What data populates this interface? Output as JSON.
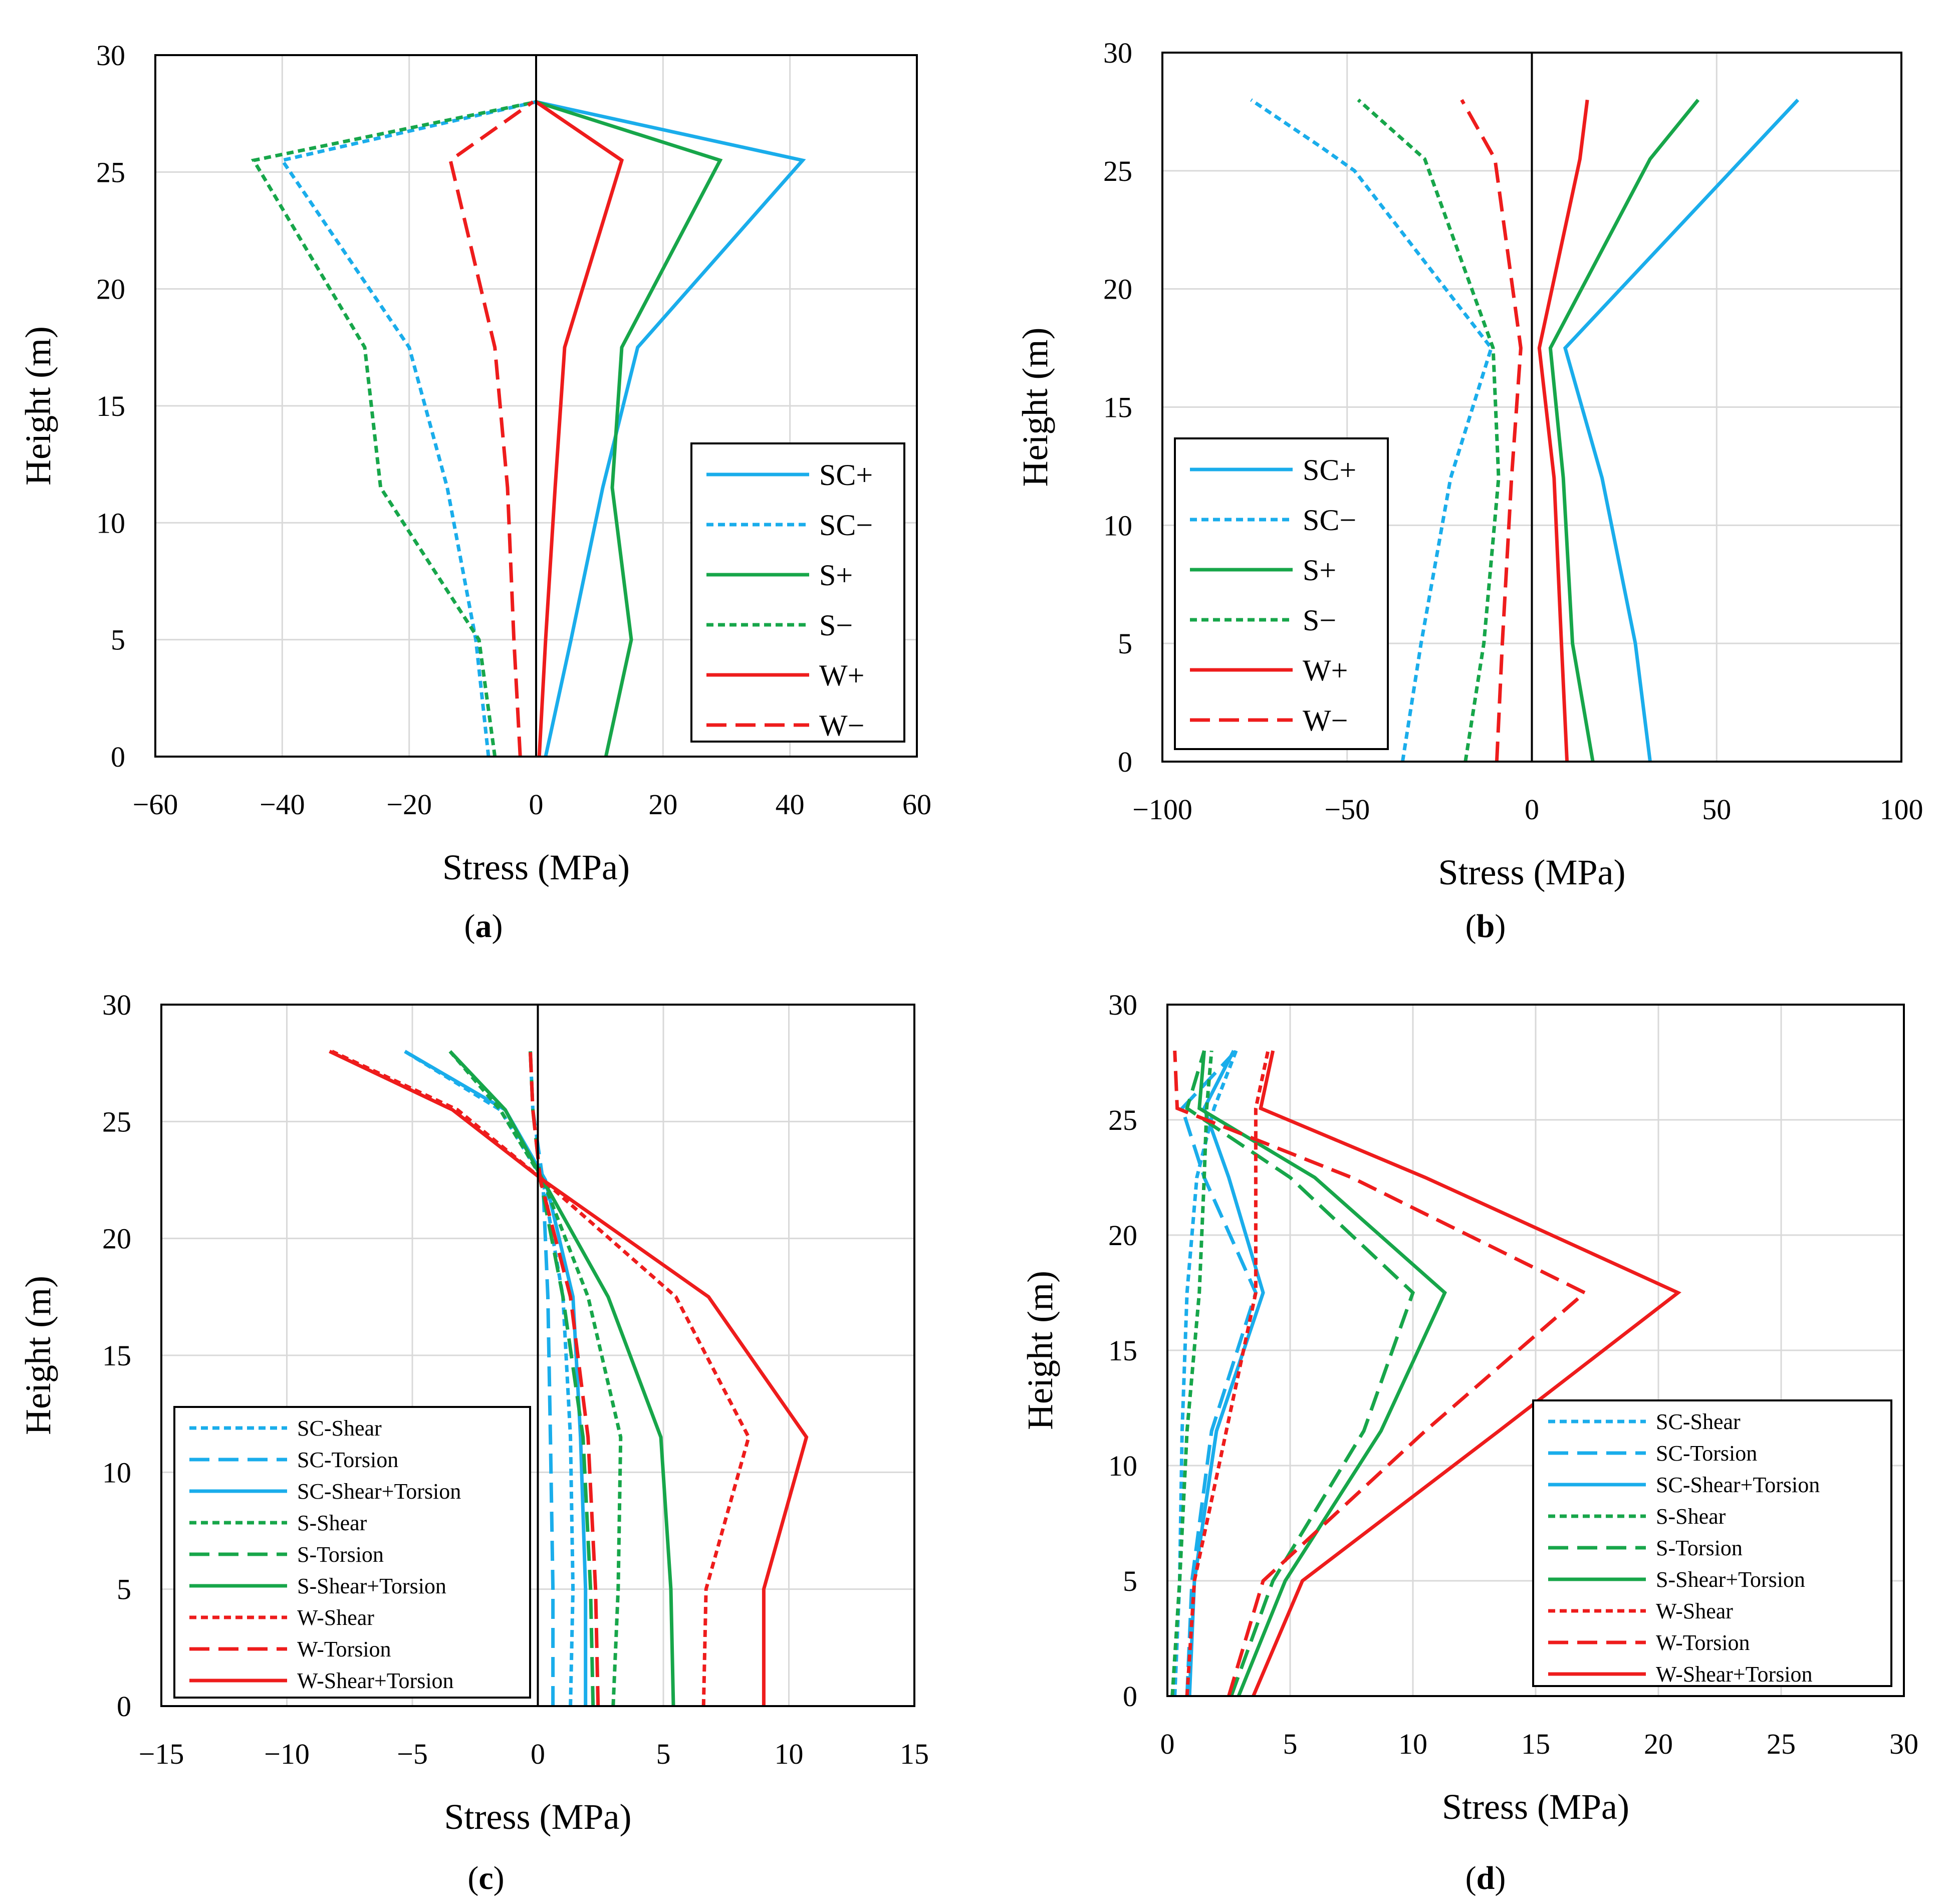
{
  "colors": {
    "SC": "#1aadeb",
    "S": "#17a64a",
    "W": "#ee1c1c",
    "grid": "#d9d9d9"
  },
  "chart_data": [
    {
      "type": "line",
      "panel": "a",
      "caption": {
        "open": "(",
        "letter": "a",
        "close": ")"
      },
      "xlabel": "Stress (MPa)",
      "ylabel": "Height (m)",
      "xlim": [
        -60,
        60
      ],
      "ylim": [
        0,
        30
      ],
      "xticks": [
        -60,
        -40,
        -20,
        0,
        20,
        40,
        60
      ],
      "xtick_labels": [
        "−60",
        "−40",
        "−20",
        "0",
        "20",
        "40",
        "60"
      ],
      "yticks": [
        0,
        5,
        10,
        15,
        20,
        25,
        30
      ],
      "ytick_labels": [
        "0",
        "5",
        "10",
        "15",
        "20",
        "25",
        "30"
      ],
      "grid": true,
      "legend_position": "right",
      "series": [
        {
          "name": "SC+",
          "color": "SC",
          "dash": "solid",
          "x": [
            1.5,
            5.5,
            10.5,
            16,
            42,
            0
          ],
          "y": [
            0,
            5,
            11.5,
            17.5,
            25.5,
            28
          ]
        },
        {
          "name": "SC−",
          "color": "SC",
          "dash": "short",
          "x": [
            -7.5,
            -9.5,
            -14,
            -20,
            -40,
            0
          ],
          "y": [
            0,
            5,
            11.5,
            17.5,
            25.5,
            28
          ]
        },
        {
          "name": "S+",
          "color": "S",
          "dash": "solid",
          "x": [
            11,
            15,
            12,
            13.5,
            29,
            0
          ],
          "y": [
            0,
            5,
            11.5,
            17.5,
            25.5,
            28
          ]
        },
        {
          "name": "S−",
          "color": "S",
          "dash": "short",
          "x": [
            -6.5,
            -9,
            -24.5,
            -27,
            -44.5,
            0
          ],
          "y": [
            0,
            5,
            11.5,
            17.5,
            25.5,
            28
          ]
        },
        {
          "name": "W+",
          "color": "W",
          "dash": "solid",
          "x": [
            0.5,
            1.5,
            3,
            4.5,
            13.5,
            0
          ],
          "y": [
            0,
            5,
            11.5,
            17.5,
            25.5,
            28
          ]
        },
        {
          "name": "W−",
          "color": "W",
          "dash": "long",
          "x": [
            -2.5,
            -3.5,
            -4.5,
            -6.5,
            -13.5,
            -0.5
          ],
          "y": [
            0,
            5,
            11.5,
            17.5,
            25.5,
            28
          ]
        }
      ]
    },
    {
      "type": "line",
      "panel": "b",
      "caption": {
        "open": "(",
        "letter": "b",
        "close": ")"
      },
      "xlabel": "Stress (MPa)",
      "ylabel": "Height (m)",
      "xlim": [
        -100,
        100
      ],
      "ylim": [
        0,
        30
      ],
      "xticks": [
        -100,
        -50,
        0,
        50,
        100
      ],
      "xtick_labels": [
        "−100",
        "−50",
        "0",
        "50",
        "100"
      ],
      "yticks": [
        0,
        5,
        10,
        15,
        20,
        25,
        30
      ],
      "ytick_labels": [
        "0",
        "5",
        "10",
        "15",
        "20",
        "25",
        "30"
      ],
      "grid": true,
      "legend_position": "left",
      "series": [
        {
          "name": "SC+",
          "color": "SC",
          "dash": "solid",
          "x": [
            32,
            28,
            19,
            9,
            72
          ],
          "y": [
            0,
            5,
            12,
            17.5,
            28
          ]
        },
        {
          "name": "SC−",
          "color": "SC",
          "dash": "short",
          "x": [
            -35,
            -30,
            -22,
            -11,
            -48,
            -57,
            -76
          ],
          "y": [
            0,
            5,
            12,
            17.5,
            25,
            26,
            28
          ]
        },
        {
          "name": "S+",
          "color": "S",
          "dash": "solid",
          "x": [
            16.5,
            11,
            8.5,
            5,
            32,
            45
          ],
          "y": [
            0,
            5,
            12,
            17.5,
            25.5,
            28
          ]
        },
        {
          "name": "S−",
          "color": "S",
          "dash": "short",
          "x": [
            -18,
            -13,
            -9,
            -10.5,
            -29,
            -47
          ],
          "y": [
            0,
            5,
            12,
            17.5,
            25.5,
            28
          ]
        },
        {
          "name": "W+",
          "color": "W",
          "dash": "solid",
          "x": [
            9.5,
            8,
            6,
            2,
            13,
            15
          ],
          "y": [
            0,
            5,
            12,
            17.5,
            25.5,
            28
          ]
        },
        {
          "name": "W−",
          "color": "W",
          "dash": "long",
          "x": [
            -9.5,
            -8,
            -5.5,
            -3,
            -10,
            -19
          ],
          "y": [
            0,
            5,
            12,
            17.5,
            25.5,
            28
          ]
        }
      ]
    },
    {
      "type": "line",
      "panel": "c",
      "caption": {
        "open": "(",
        "letter": "c",
        "close": ")"
      },
      "xlabel": "Stress (MPa)",
      "ylabel": "Height (m)",
      "xlim": [
        -15,
        15
      ],
      "ylim": [
        0,
        30
      ],
      "xticks": [
        -15,
        -10,
        -5,
        0,
        5,
        10,
        15
      ],
      "xtick_labels": [
        "−15",
        "−10",
        "−5",
        "0",
        "5",
        "10",
        "15"
      ],
      "yticks": [
        0,
        5,
        10,
        15,
        20,
        25,
        30
      ],
      "ytick_labels": [
        "0",
        "5",
        "10",
        "15",
        "20",
        "25",
        "30"
      ],
      "grid": true,
      "legend_position": "bottom-left",
      "series": [
        {
          "name": "SC-Shear",
          "color": "SC",
          "dash": "short",
          "x": [
            1.3,
            1.4,
            1.3,
            1.0,
            0.2,
            -1.5,
            -5.3
          ],
          "y": [
            0,
            5,
            11.5,
            17.5,
            22.5,
            25.5,
            28
          ]
        },
        {
          "name": "SC-Torsion",
          "color": "SC",
          "dash": "long",
          "x": [
            0.6,
            0.6,
            0.5,
            0.4,
            0.2,
            -0.2,
            -0.3
          ],
          "y": [
            0,
            5,
            11.5,
            17.5,
            22.5,
            25.5,
            28
          ]
        },
        {
          "name": "SC-Shear+Torsion",
          "color": "SC",
          "dash": "solid",
          "x": [
            1.9,
            1.9,
            1.7,
            1.4,
            0.3,
            -1.3,
            -5.3
          ],
          "y": [
            0,
            5,
            11.5,
            17.5,
            22.5,
            25.5,
            28
          ]
        },
        {
          "name": "S-Shear",
          "color": "S",
          "dash": "short",
          "x": [
            3.0,
            3.2,
            3.3,
            2.0,
            0.2,
            -1.5,
            -3.5
          ],
          "y": [
            0,
            5,
            11.5,
            17.5,
            22.5,
            25.5,
            28
          ]
        },
        {
          "name": "S-Torsion",
          "color": "S",
          "dash": "long",
          "x": [
            2.2,
            2.1,
            1.8,
            1.0,
            0.1,
            -0.2,
            -0.3
          ],
          "y": [
            0,
            5,
            11.5,
            17.5,
            22.5,
            25.5,
            28
          ]
        },
        {
          "name": "S-Shear+Torsion",
          "color": "S",
          "dash": "solid",
          "x": [
            5.4,
            5.3,
            4.9,
            2.8,
            0.2,
            -1.3,
            -3.5
          ],
          "y": [
            0,
            5,
            11.5,
            17.5,
            22.5,
            25.5,
            28
          ]
        },
        {
          "name": "W-Shear",
          "color": "W",
          "dash": "short",
          "x": [
            6.6,
            6.7,
            8.4,
            5.5,
            0.2,
            -3.2,
            -8.2
          ],
          "y": [
            0,
            5,
            11.5,
            17.5,
            22.5,
            25.5,
            28
          ]
        },
        {
          "name": "W-Torsion",
          "color": "W",
          "dash": "long",
          "x": [
            2.4,
            2.3,
            2.0,
            1.3,
            0.1,
            -0.2,
            -0.3
          ],
          "y": [
            0,
            5,
            11.5,
            17.5,
            22.5,
            25.5,
            28
          ]
        },
        {
          "name": "W-Shear+Torsion",
          "color": "W",
          "dash": "solid",
          "x": [
            9.0,
            9.0,
            10.7,
            6.8,
            0.2,
            -3.4,
            -8.3
          ],
          "y": [
            0,
            5,
            11.5,
            17.5,
            22.5,
            25.5,
            28
          ]
        }
      ]
    },
    {
      "type": "line",
      "panel": "d",
      "caption": {
        "open": "(",
        "letter": "d",
        "close": ")"
      },
      "xlabel": "Stress (MPa)",
      "ylabel": "Height (m)",
      "xlim": [
        0,
        30
      ],
      "ylim": [
        0,
        30
      ],
      "xticks": [
        0,
        5,
        10,
        15,
        20,
        25,
        30
      ],
      "xtick_labels": [
        "0",
        "5",
        "10",
        "15",
        "20",
        "25",
        "30"
      ],
      "yticks": [
        0,
        5,
        10,
        15,
        20,
        25,
        30
      ],
      "ytick_labels": [
        "0",
        "5",
        "10",
        "15",
        "20",
        "25",
        "30"
      ],
      "grid": true,
      "legend_position": "bottom-right",
      "series": [
        {
          "name": "SC-Shear",
          "color": "SC",
          "dash": "short",
          "x": [
            0.3,
            0.5,
            0.6,
            0.8,
            1.2,
            1.9,
            2.8
          ],
          "y": [
            0,
            5,
            11.5,
            17.5,
            22.5,
            25.5,
            28
          ]
        },
        {
          "name": "SC-Torsion",
          "color": "SC",
          "dash": "long",
          "x": [
            0.8,
            1.0,
            1.8,
            3.6,
            1.5,
            0.6,
            2.8
          ],
          "y": [
            0,
            5,
            11.5,
            17.5,
            22.5,
            25.5,
            28
          ]
        },
        {
          "name": "SC-Shear+Torsion",
          "color": "SC",
          "dash": "solid",
          "x": [
            0.9,
            1.1,
            2.0,
            3.9,
            2.5,
            1.5,
            2.7
          ],
          "y": [
            0,
            5,
            11.5,
            17.5,
            22.5,
            25.5,
            28
          ]
        },
        {
          "name": "S-Shear",
          "color": "S",
          "dash": "short",
          "x": [
            0.2,
            0.5,
            0.8,
            1.3,
            1.5,
            1.6,
            1.8
          ],
          "y": [
            0,
            5,
            11.5,
            17.5,
            22.5,
            25.5,
            28
          ]
        },
        {
          "name": "S-Torsion",
          "color": "S",
          "dash": "long",
          "x": [
            2.6,
            4.3,
            8.0,
            10.0,
            5.0,
            0.8,
            1.5
          ],
          "y": [
            0,
            5,
            11.5,
            17.5,
            22.5,
            25.5,
            28
          ]
        },
        {
          "name": "S-Shear+Torsion",
          "color": "S",
          "dash": "solid",
          "x": [
            2.9,
            4.8,
            8.7,
            11.3,
            6.0,
            1.3,
            1.5
          ],
          "y": [
            0,
            5,
            11.5,
            17.5,
            22.5,
            25.5,
            28
          ]
        },
        {
          "name": "W-Shear",
          "color": "W",
          "dash": "short",
          "x": [
            0.8,
            1.1,
            2.4,
            3.6,
            3.6,
            3.6,
            4.1
          ],
          "y": [
            0,
            5,
            11.5,
            17.5,
            22.5,
            25.5,
            28
          ]
        },
        {
          "name": "W-Torsion",
          "color": "W",
          "dash": "long",
          "x": [
            2.5,
            3.9,
            10.5,
            17.0,
            7.5,
            0.4,
            0.3
          ],
          "y": [
            0,
            5,
            11.5,
            17.5,
            22.5,
            25.5,
            28
          ]
        },
        {
          "name": "W-Shear+Torsion",
          "color": "W",
          "dash": "solid",
          "x": [
            3.5,
            5.5,
            13.5,
            20.8,
            10.5,
            3.8,
            4.3
          ],
          "y": [
            0,
            5,
            11.5,
            17.5,
            22.5,
            25.5,
            28
          ]
        }
      ]
    }
  ]
}
